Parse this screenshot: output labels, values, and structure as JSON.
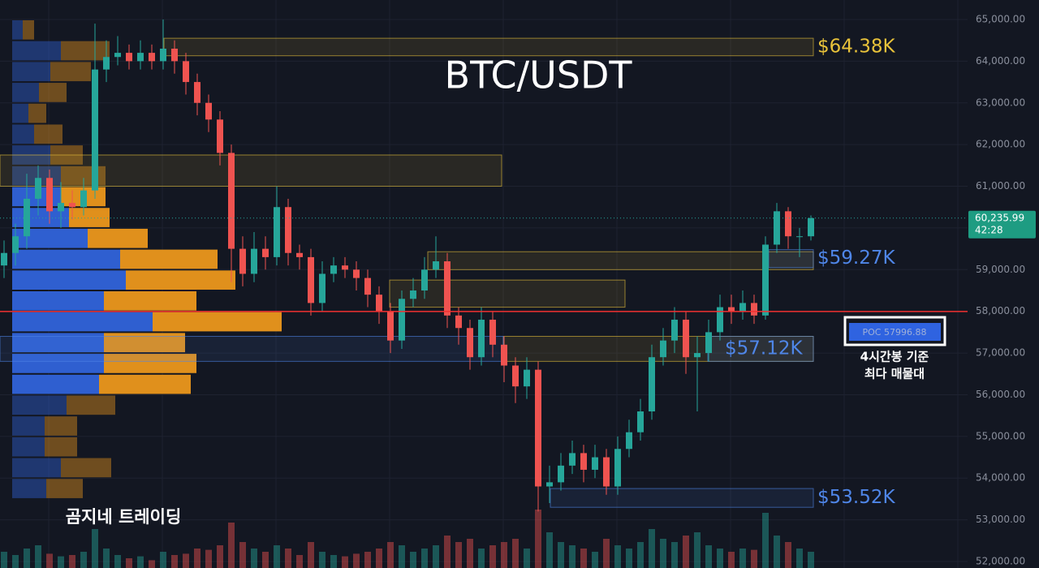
{
  "chart_data": {
    "type": "candlestick",
    "title": "BTC/USDT",
    "watermark": "곰지네 트레이딩",
    "up_color": "#26a69a",
    "down_color": "#ef5350",
    "ylim": [
      52000,
      65000
    ],
    "yticks": [
      {
        "value": 65000,
        "label": "65,000.00"
      },
      {
        "value": 64000,
        "label": "64,000.00"
      },
      {
        "value": 63000,
        "label": "63,000.00"
      },
      {
        "value": 62000,
        "label": "62,000.00"
      },
      {
        "value": 61000,
        "label": "61,000.00"
      },
      {
        "value": 60000,
        "label": "60,000.00"
      },
      {
        "value": 59000,
        "label": "59,000.00"
      },
      {
        "value": 58000,
        "label": "58,000.00"
      },
      {
        "value": 57000,
        "label": "57,000.00"
      },
      {
        "value": 56000,
        "label": "56,000.00"
      },
      {
        "value": 55000,
        "label": "55,000.00"
      },
      {
        "value": 54000,
        "label": "54,000.00"
      },
      {
        "value": 53000,
        "label": "53,000.00"
      },
      {
        "value": 52000,
        "label": "52,000.00"
      }
    ],
    "grid": true,
    "open": [
      59100,
      59400,
      59800,
      60700,
      61200,
      60400,
      60600,
      60500,
      60900,
      63800,
      64100,
      64200,
      64000,
      64200,
      64000,
      64300,
      64000,
      63500,
      63000,
      62600,
      61800,
      59500,
      58900,
      59500,
      59300,
      60500,
      59400,
      59300,
      58200,
      58900,
      59100,
      59000,
      58800,
      58400,
      58000,
      57300,
      58300,
      58500,
      59000,
      59200,
      57900,
      57600,
      56900,
      57800,
      57200,
      56700,
      56200,
      56600,
      53800,
      53900,
      54300,
      54600,
      54200,
      54500,
      53800,
      54700,
      55100,
      55600,
      56900,
      57300,
      57800,
      56900,
      57000,
      57500,
      58100,
      58000,
      58200,
      57900,
      59600,
      60400,
      59800,
      59800
    ],
    "high": [
      59700,
      60100,
      61300,
      61500,
      61400,
      61100,
      60900,
      61200,
      64900,
      64500,
      64600,
      64400,
      64500,
      64400,
      65000,
      64500,
      64200,
      63700,
      63200,
      62800,
      62000,
      59800,
      59900,
      59800,
      61000,
      60700,
      59600,
      59500,
      59200,
      59300,
      59300,
      59200,
      59000,
      58600,
      58200,
      58500,
      58800,
      59300,
      59800,
      59400,
      58100,
      57800,
      58100,
      58000,
      57400,
      56900,
      56900,
      56800,
      54300,
      54600,
      54900,
      54800,
      54800,
      54700,
      55000,
      55400,
      55900,
      57200,
      57600,
      58100,
      58000,
      57400,
      57800,
      58400,
      58400,
      58500,
      58400,
      59800,
      60600,
      60500,
      60000,
      60300
    ],
    "low": [
      58800,
      59100,
      59500,
      60300,
      60100,
      60000,
      60200,
      60300,
      60700,
      63500,
      63900,
      63800,
      63800,
      63800,
      63800,
      63700,
      63200,
      62700,
      62300,
      61500,
      58700,
      58600,
      58700,
      59000,
      59100,
      59100,
      59000,
      57900,
      58000,
      58700,
      58800,
      58500,
      58100,
      57700,
      57000,
      57100,
      58100,
      58300,
      58800,
      57600,
      57200,
      56600,
      56700,
      56900,
      56300,
      55800,
      55900,
      53200,
      53400,
      53700,
      54100,
      53900,
      54000,
      53600,
      53600,
      54500,
      54900,
      55400,
      56700,
      57000,
      56500,
      55600,
      56800,
      57300,
      57700,
      57800,
      57700,
      57800,
      59400,
      59500,
      59300,
      59700
    ],
    "close": [
      59400,
      59800,
      60700,
      61200,
      60400,
      60600,
      60500,
      60900,
      63800,
      64100,
      64200,
      64000,
      64200,
      64000,
      64300,
      64000,
      63500,
      63000,
      62600,
      61800,
      59500,
      58900,
      59500,
      59300,
      60500,
      59400,
      59300,
      58200,
      58900,
      59100,
      59000,
      58800,
      58400,
      58000,
      57300,
      58300,
      58500,
      59000,
      59200,
      57900,
      57600,
      56900,
      57800,
      57200,
      56700,
      56200,
      56600,
      53800,
      53900,
      54300,
      54600,
      54200,
      54500,
      53800,
      54700,
      55100,
      55600,
      56900,
      57300,
      57800,
      56900,
      57000,
      57500,
      58100,
      58000,
      58200,
      57900,
      59600,
      60400,
      59800,
      59800,
      60235.99
    ],
    "volume": [
      25,
      20,
      30,
      35,
      22,
      18,
      20,
      25,
      60,
      30,
      20,
      15,
      18,
      12,
      25,
      20,
      22,
      30,
      28,
      35,
      70,
      40,
      30,
      25,
      35,
      30,
      20,
      40,
      25,
      20,
      18,
      22,
      25,
      30,
      40,
      35,
      25,
      30,
      35,
      50,
      40,
      45,
      30,
      35,
      40,
      45,
      30,
      90,
      55,
      40,
      35,
      30,
      25,
      45,
      35,
      30,
      40,
      60,
      45,
      40,
      50,
      55,
      35,
      30,
      25,
      30,
      28,
      85,
      50,
      40,
      30,
      25
    ],
    "volume_profile": {
      "bins": [
        65000,
        64500,
        64000,
        63500,
        63000,
        62500,
        62000,
        61500,
        61000,
        60500,
        60000,
        59500,
        59000,
        58500,
        58000,
        57500,
        57000,
        56500,
        56000,
        55500,
        55000,
        54500,
        54000,
        53500
      ],
      "buy": [
        13,
        60,
        47,
        33,
        20,
        27,
        47,
        60,
        60,
        70,
        93,
        133,
        140,
        113,
        173,
        113,
        113,
        107,
        67,
        40,
        40,
        60,
        42
      ],
      "sell": [
        14,
        60,
        50,
        34,
        22,
        35,
        40,
        55,
        55,
        50,
        74,
        120,
        135,
        114,
        159,
        100,
        114,
        113,
        60,
        40,
        40,
        62,
        45
      ],
      "buy_color": "#2f5fd0",
      "sell_color": "#e0901c",
      "value_area": [
        56000,
        61000
      ]
    },
    "zones": [
      {
        "low": 64130,
        "high": 64550,
        "color": "#e8c23a",
        "label": "$64.38K"
      },
      {
        "low": 61000,
        "high": 61750,
        "color": "#e8c23a"
      },
      {
        "low": 59000,
        "high": 59430,
        "color": "#e8c23a"
      },
      {
        "low": 59050,
        "high": 59480,
        "color": "#4f86e8",
        "label": "$59.27K"
      },
      {
        "low": 58100,
        "high": 58750,
        "color": "#e8c23a"
      },
      {
        "low": 56800,
        "high": 57400,
        "color": "#e8c23a"
      },
      {
        "low": 56800,
        "high": 57400,
        "color": "#4f86e8",
        "label": "$57.12K"
      },
      {
        "low": 56800,
        "high": 57400,
        "color": "#4f86e8"
      },
      {
        "low": 53300,
        "high": 53750,
        "color": "#4f86e8",
        "label": "$53.52K"
      }
    ],
    "poc": {
      "value": 57996.88,
      "label": "POC  57996.88",
      "color": "#f23030"
    },
    "poc_note": [
      "4시간봉 기준",
      "최다 매물대"
    ],
    "last_price": {
      "value": 60235.99,
      "label": "60,235.99"
    },
    "countdown": "42:28"
  }
}
